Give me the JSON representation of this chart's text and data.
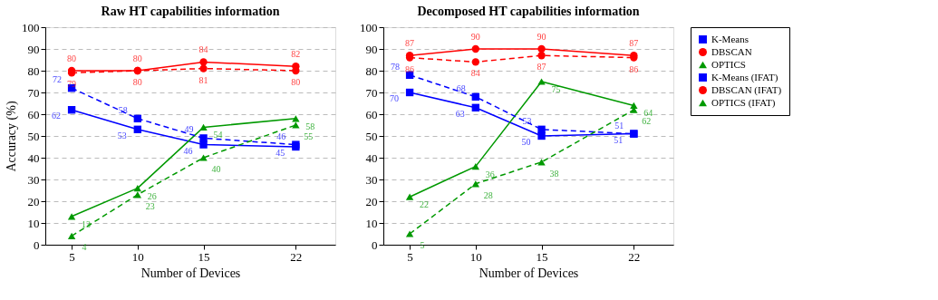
{
  "chart_data": [
    {
      "type": "line",
      "title": "Raw HT capabilities information",
      "xlabel": "Number of Devices",
      "ylabel": "Accuracy (%)",
      "x": [
        5,
        10,
        15,
        22
      ],
      "xlim": [
        3,
        25
      ],
      "xticks": [
        5,
        10,
        15,
        22
      ],
      "ylim": [
        0,
        100
      ],
      "yticks": [
        0,
        10,
        20,
        30,
        40,
        50,
        60,
        70,
        80,
        90,
        100
      ],
      "grid": "y",
      "legend": "right",
      "data_labels": true,
      "series": [
        {
          "name": "K-Means",
          "color": "#0000ff",
          "marker": "square",
          "line_style": "solid",
          "values": [
            62,
            53,
            46,
            45
          ]
        },
        {
          "name": "DBSCAN",
          "color": "#ff0000",
          "marker": "circle",
          "line_style": "solid",
          "values": [
            80,
            80,
            84,
            82
          ]
        },
        {
          "name": "OPTICS",
          "color": "#009900",
          "marker": "triangle",
          "line_style": "solid",
          "values": [
            13,
            26,
            54,
            58
          ]
        },
        {
          "name": "K-Means (IFAT)",
          "color": "#0000ff",
          "marker": "square",
          "line_style": "dashed",
          "values": [
            72,
            58,
            49,
            46
          ]
        },
        {
          "name": "DBSCAN (IFAT)",
          "color": "#ff0000",
          "marker": "circle",
          "line_style": "dashed",
          "values": [
            79,
            80,
            81,
            80
          ]
        },
        {
          "name": "OPTICS (IFAT)",
          "color": "#009900",
          "marker": "triangle",
          "line_style": "dashed",
          "values": [
            4,
            23,
            40,
            55
          ]
        }
      ]
    },
    {
      "type": "line",
      "title": "Decomposed HT capabilities information",
      "xlabel": "Number of Devices",
      "x": [
        5,
        10,
        15,
        22
      ],
      "xlim": [
        3,
        25
      ],
      "xticks": [
        5,
        10,
        15,
        22
      ],
      "ylim": [
        0,
        100
      ],
      "yticks": [
        0,
        10,
        20,
        30,
        40,
        50,
        60,
        70,
        80,
        90,
        100
      ],
      "grid": "y",
      "legend": "right",
      "data_labels": true,
      "series": [
        {
          "name": "K-Means",
          "color": "#0000ff",
          "marker": "square",
          "line_style": "solid",
          "values": [
            70,
            63,
            50,
            51
          ]
        },
        {
          "name": "DBSCAN",
          "color": "#ff0000",
          "marker": "circle",
          "line_style": "solid",
          "values": [
            87,
            90,
            90,
            87
          ]
        },
        {
          "name": "OPTICS",
          "color": "#009900",
          "marker": "triangle",
          "line_style": "solid",
          "values": [
            22,
            36,
            75,
            64
          ]
        },
        {
          "name": "K-Means (IFAT)",
          "color": "#0000ff",
          "marker": "square",
          "line_style": "dashed",
          "values": [
            78,
            68,
            53,
            51
          ]
        },
        {
          "name": "DBSCAN (IFAT)",
          "color": "#ff0000",
          "marker": "circle",
          "line_style": "dashed",
          "values": [
            86,
            84,
            87,
            86
          ]
        },
        {
          "name": "OPTICS (IFAT)",
          "color": "#009900",
          "marker": "triangle",
          "line_style": "dashed",
          "values": [
            5,
            28,
            38,
            62
          ]
        }
      ]
    }
  ]
}
